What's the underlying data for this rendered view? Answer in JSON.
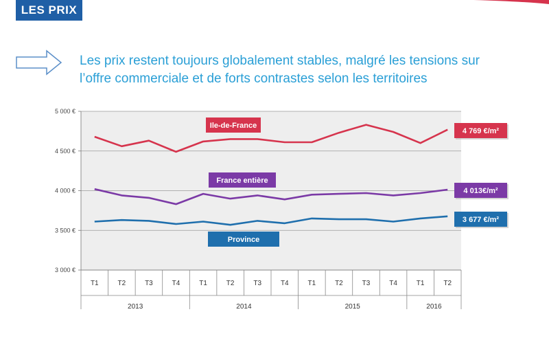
{
  "header": {
    "section_tag": "LES PRIX",
    "headline_line1": "Les prix restent toujours globalement stables, malgré les tensions sur",
    "headline_line2": "l’offre commerciale et de forts contrastes selon les territoires"
  },
  "icons": {
    "headline_arrow": "right-arrow-outline-icon"
  },
  "colors": {
    "tag_bg": "#1f5fa6",
    "headline": "#2a9fd6",
    "idf": "#d6344d",
    "france": "#7b3aa6",
    "province": "#1f6fad"
  },
  "chart_data": {
    "type": "line",
    "title": "",
    "xlabel": "",
    "ylabel": "",
    "quarters": [
      "T1",
      "T2",
      "T3",
      "T4",
      "T1",
      "T2",
      "T3",
      "T4",
      "T1",
      "T2",
      "T3",
      "T4",
      "T1",
      "T2"
    ],
    "years": [
      {
        "label": "2013",
        "span": 4
      },
      {
        "label": "2014",
        "span": 4
      },
      {
        "label": "2015",
        "span": 4
      },
      {
        "label": "2016",
        "span": 2
      }
    ],
    "ylim": [
      3000,
      5000
    ],
    "yticks": [
      3000,
      3500,
      4000,
      4500,
      5000
    ],
    "ytick_labels": [
      "3 000 €",
      "3 500 €",
      "4 000 €",
      "4 500 €",
      "5 000 €"
    ],
    "series": [
      {
        "name": "Ile-de-France",
        "color": "#d6344d",
        "end_label": "4 769 €/m²",
        "values": [
          4680,
          4560,
          4630,
          4490,
          4620,
          4650,
          4650,
          4610,
          4610,
          4730,
          4830,
          4740,
          4600,
          4769
        ]
      },
      {
        "name": "France entière",
        "color": "#7b3aa6",
        "end_label": "4 013€/m²",
        "values": [
          4020,
          3940,
          3910,
          3830,
          3960,
          3900,
          3940,
          3890,
          3950,
          3960,
          3970,
          3940,
          3970,
          4013
        ]
      },
      {
        "name": "Province",
        "color": "#1f6fad",
        "end_label": "3 677 €/m²",
        "values": [
          3610,
          3630,
          3620,
          3580,
          3610,
          3570,
          3620,
          3590,
          3650,
          3640,
          3640,
          3610,
          3650,
          3677
        ]
      }
    ]
  }
}
